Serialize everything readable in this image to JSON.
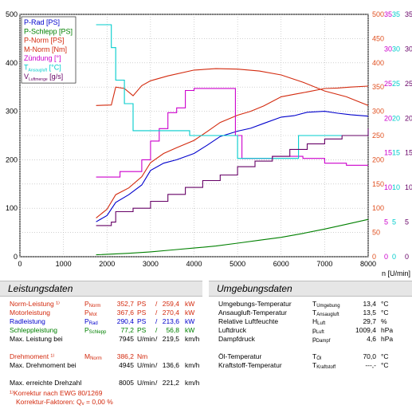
{
  "chart_data": {
    "type": "line",
    "x_unit_label": "n [U/min]",
    "x_ticks": [
      "0",
      "1000",
      "2000",
      "3000",
      "4000",
      "5000",
      "6000",
      "7000",
      "8000"
    ],
    "xlim": [
      0,
      8000
    ],
    "y_left_ticks": [
      "0",
      "100",
      "200",
      "300",
      "400",
      "500"
    ],
    "y_left_lim": [
      0,
      500
    ],
    "y_right_orange_ticks": [
      "0",
      "50",
      "100",
      "150",
      "200",
      "250",
      "300",
      "350",
      "400",
      "450",
      "500"
    ],
    "y_right_purple_ticks": [
      "0",
      "5",
      "10",
      "15",
      "20",
      "25",
      "30",
      "35"
    ],
    "y_right_cyan_ticks": [
      "0",
      "5",
      "10",
      "15",
      "20",
      "25",
      "30",
      "35"
    ],
    "y_right_violet_ticks": [
      "0",
      "5",
      "10",
      "15",
      "20",
      "25",
      "30",
      "35"
    ],
    "legend_placement": "top-left",
    "grid": true,
    "series": [
      {
        "name": "P-Rad [PS]",
        "color": "#0000cc",
        "axis": "left",
        "x": [
          1750,
          2000,
          2200,
          2500,
          2800,
          3000,
          3300,
          3600,
          4000,
          4300,
          4600,
          5000,
          5300,
          5600,
          6000,
          6300,
          6600,
          7000,
          7300,
          7600,
          8000
        ],
        "y": [
          72,
          85,
          112,
          128,
          148,
          178,
          193,
          200,
          213,
          230,
          248,
          259,
          265,
          275,
          288,
          291,
          298,
          300,
          296,
          293,
          290
        ]
      },
      {
        "name": "P-Schlepp [PS]",
        "color": "#008000",
        "axis": "left",
        "x": [
          1750,
          2500,
          3000,
          3500,
          4000,
          4500,
          5000,
          5500,
          6000,
          6500,
          7000,
          7500,
          8000
        ],
        "y": [
          4,
          7,
          10,
          14,
          18,
          22,
          28,
          34,
          40,
          48,
          57,
          67,
          77
        ]
      },
      {
        "name": "P-Norm [PS]",
        "color": "#d32a0e",
        "axis": "left",
        "x": [
          1750,
          2000,
          2200,
          2500,
          2800,
          3000,
          3300,
          3600,
          4000,
          4300,
          4600,
          5000,
          5300,
          5600,
          6000,
          6300,
          6600,
          7000,
          7300,
          7600,
          8000
        ],
        "y": [
          80,
          98,
          128,
          142,
          165,
          194,
          213,
          225,
          240,
          258,
          277,
          292,
          300,
          311,
          330,
          335,
          340,
          347,
          348,
          350,
          352
        ]
      },
      {
        "name": "M-Norm [Nm]",
        "color": "#d32a0e",
        "axis": "right_orange",
        "x": [
          1750,
          2100,
          2200,
          2400,
          2600,
          2800,
          3000,
          3400,
          4000,
          4500,
          5000,
          5500,
          6000,
          6500,
          7000,
          7500,
          8000
        ],
        "y": [
          312,
          313,
          350,
          347,
          332,
          353,
          363,
          373,
          385,
          388,
          387,
          383,
          375,
          360,
          342,
          330,
          312
        ]
      },
      {
        "name": "Zündung [°]",
        "color": "#cc00cc",
        "axis": "right_purple",
        "x": [
          1750,
          2100,
          2300,
          2600,
          2800,
          3000,
          3200,
          3400,
          3600,
          3800,
          4000,
          4400,
          4800,
          4950,
          5100,
          5500,
          5800,
          6200,
          6500,
          7000,
          7500,
          8000
        ],
        "y": [
          11.5,
          11.5,
          12.3,
          12.3,
          14,
          16.7,
          18.5,
          20.8,
          21.5,
          24,
          24.3,
          24.3,
          24.3,
          17.5,
          14.2,
          14.2,
          14.5,
          14.5,
          14.2,
          13.5,
          13.2,
          13.2
        ]
      },
      {
        "name": "Tansaugluft [°C]",
        "color": "#00cccc",
        "axis": "right_cyan",
        "x": [
          1750,
          2050,
          2100,
          2200,
          2400,
          2600,
          3000,
          3600,
          3900,
          4700,
          5000,
          5600,
          6200,
          6400,
          7000,
          8000
        ],
        "y": [
          33.5,
          33.5,
          30.2,
          25.5,
          22.1,
          18.2,
          18.2,
          18.2,
          17.5,
          17.5,
          14.2,
          14.2,
          14.2,
          17.5,
          17.5,
          18.2
        ]
      },
      {
        "name": "VLuftmenge [g/s]",
        "color": "#660066",
        "axis": "right_violet",
        "x": [
          1750,
          2100,
          2200,
          2600,
          3000,
          3400,
          3800,
          4200,
          4600,
          5000,
          5400,
          5800,
          6200,
          6600,
          7000,
          7400,
          8000
        ],
        "y": [
          4.5,
          5,
          6.5,
          7,
          8,
          9,
          10,
          11,
          11.8,
          13,
          13.8,
          14.5,
          15.5,
          16.3,
          17,
          17.5,
          18.5
        ]
      }
    ]
  },
  "tables": {
    "left": {
      "title": "Leistungsdaten",
      "rows": [
        {
          "label": "Norm-Leistung ¹⁾",
          "sym": "P",
          "sub": "Norm",
          "v1": "352,7",
          "u1": "PS",
          "sep": "/",
          "v2": "259,4",
          "u2": "kW",
          "color": "red"
        },
        {
          "label": "Motorleistung",
          "sym": "P",
          "sub": "Mot",
          "v1": "367,6",
          "u1": "PS",
          "sep": "/",
          "v2": "270,4",
          "u2": "kW",
          "color": "red"
        },
        {
          "label": "Radleistung",
          "sym": "P",
          "sub": "Rad",
          "v1": "290,4",
          "u1": "PS",
          "sep": "/",
          "v2": "213,6",
          "u2": "kW",
          "color": "blue"
        },
        {
          "label": "Schleppleistung",
          "sym": "P",
          "sub": "Schlepp",
          "v1": "77,2",
          "u1": "PS",
          "sep": "/",
          "v2": "56,8",
          "u2": "kW",
          "color": "green"
        },
        {
          "label": "Max. Leistung bei",
          "sym": "",
          "sub": "",
          "v1": "7945",
          "u1": "U/min",
          "sep": "/",
          "v2": "219,5",
          "u2": "km/h",
          "color": "black"
        },
        {
          "label": "",
          "sym": "",
          "sub": "",
          "v1": "",
          "u1": "",
          "sep": "",
          "v2": "",
          "u2": "",
          "color": "black"
        },
        {
          "label": "Drehmoment ¹⁾",
          "sym": "M",
          "sub": "Norm",
          "v1": "386,2",
          "u1": "Nm",
          "sep": "",
          "v2": "",
          "u2": "",
          "color": "red"
        },
        {
          "label": "Max. Drehmoment bei",
          "sym": "",
          "sub": "",
          "v1": "4945",
          "u1": "U/min",
          "sep": "/",
          "v2": "136,6",
          "u2": "km/h",
          "color": "black"
        },
        {
          "label": "",
          "sym": "",
          "sub": "",
          "v1": "",
          "u1": "",
          "sep": "",
          "v2": "",
          "u2": "",
          "color": "black"
        },
        {
          "label": "Max. erreichte Drehzahl",
          "sym": "",
          "sub": "",
          "v1": "8005",
          "u1": "U/min",
          "sep": "/",
          "v2": "221,2",
          "u2": "km/h",
          "color": "black"
        }
      ],
      "foot1": "¹⁾Korrektur nach EWG 80/1269",
      "foot2": "Korrektur-Faktoren:  Q",
      "foot2_sub": "v",
      "foot2_val": " =    0,00 %"
    },
    "right": {
      "title": "Umgebungsdaten",
      "rows": [
        {
          "label": "Umgebungs-Temperatur",
          "sym": "T",
          "sub": "Umgebung",
          "val": "13,4",
          "unit": "°C"
        },
        {
          "label": "Ansaugluft-Temperatur",
          "sym": "T",
          "sub": "Ansaugluft",
          "val": "13,5",
          "unit": "°C"
        },
        {
          "label": "Relative Luftfeuchte",
          "sym": "H",
          "sub": "Luft",
          "val": "29,7",
          "unit": "%"
        },
        {
          "label": "Luftdruck",
          "sym": "p",
          "sub": "Luft",
          "val": "1009,4",
          "unit": "hPa"
        },
        {
          "label": "Dampfdruck",
          "sym": "p",
          "sub": "Dampf",
          "val": "4,6",
          "unit": "hPa"
        },
        {
          "label": "",
          "sym": "",
          "sub": "",
          "val": "",
          "unit": ""
        },
        {
          "label": "Öl-Temperatur",
          "sym": "T",
          "sub": "Öl",
          "val": "70,0",
          "unit": "°C"
        },
        {
          "label": "Kraftstoff-Temperatur",
          "sym": "T",
          "sub": "Kraftstoff",
          "val": "---,-",
          "unit": "°C"
        }
      ]
    }
  },
  "colors": {
    "red": "#d32a0e",
    "blue": "#0000cc",
    "green": "#008000",
    "black": "#000000",
    "orange": "#e05020",
    "purple": "#cc00cc",
    "cyan": "#00cccc",
    "violet": "#660066"
  }
}
